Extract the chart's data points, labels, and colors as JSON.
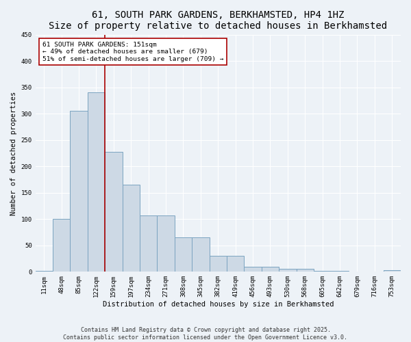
{
  "title": "61, SOUTH PARK GARDENS, BERKHAMSTED, HP4 1HZ",
  "subtitle": "Size of property relative to detached houses in Berkhamsted",
  "xlabel": "Distribution of detached houses by size in Berkhamsted",
  "ylabel": "Number of detached properties",
  "categories": [
    "11sqm",
    "48sqm",
    "85sqm",
    "122sqm",
    "159sqm",
    "197sqm",
    "234sqm",
    "271sqm",
    "308sqm",
    "345sqm",
    "382sqm",
    "419sqm",
    "456sqm",
    "493sqm",
    "530sqm",
    "568sqm",
    "605sqm",
    "642sqm",
    "679sqm",
    "716sqm",
    "753sqm"
  ],
  "values": [
    2,
    100,
    305,
    340,
    228,
    165,
    107,
    107,
    65,
    65,
    30,
    30,
    10,
    10,
    5,
    5,
    2,
    2,
    0,
    0,
    3
  ],
  "bar_color": "#cdd9e5",
  "bar_edge_color": "#7aa3c0",
  "vline_color": "#aa0000",
  "annotation_text": "61 SOUTH PARK GARDENS: 151sqm\n← 49% of detached houses are smaller (679)\n51% of semi-detached houses are larger (709) →",
  "annotation_box_color": "#ffffff",
  "annotation_box_edge": "#aa0000",
  "ylim": [
    0,
    450
  ],
  "yticks": [
    0,
    50,
    100,
    150,
    200,
    250,
    300,
    350,
    400,
    450
  ],
  "footer_line1": "Contains HM Land Registry data © Crown copyright and database right 2025.",
  "footer_line2": "Contains public sector information licensed under the Open Government Licence v3.0.",
  "bg_color": "#edf2f7",
  "title_fontsize": 10,
  "subtitle_fontsize": 8.5,
  "axis_label_fontsize": 7.5,
  "tick_fontsize": 6.5,
  "annotation_fontsize": 6.8,
  "footer_fontsize": 6.0
}
